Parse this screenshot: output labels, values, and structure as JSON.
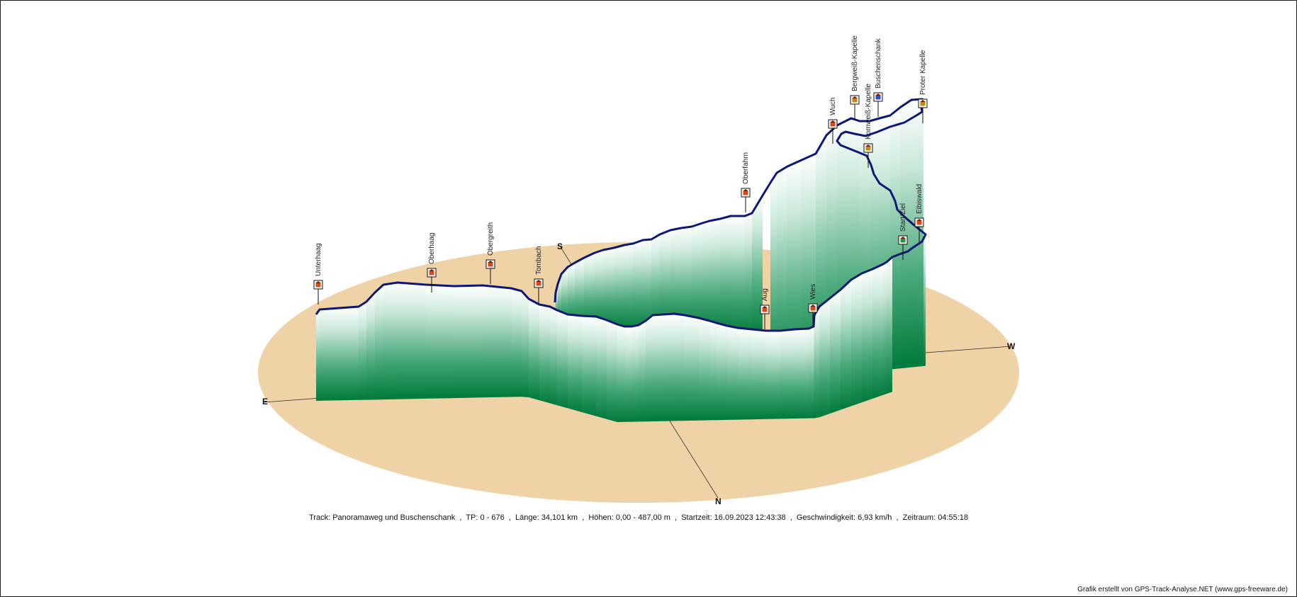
{
  "compass": {
    "north": "N",
    "south": "S",
    "east": "E",
    "west": "W"
  },
  "waypoints": [
    {
      "name": "Unterhaag",
      "icon": "house-icon",
      "alt": 10
    },
    {
      "name": "Oberhaag",
      "icon": "house-icon",
      "alt": 30
    },
    {
      "name": "Obergreith",
      "icon": "house-icon",
      "alt": 60
    },
    {
      "name": "Tombach",
      "icon": "house-icon",
      "alt": 20
    },
    {
      "name": "Oberfahrn",
      "icon": "house-icon",
      "alt": 150
    },
    {
      "name": "Aug",
      "icon": "house-icon",
      "alt": 10
    },
    {
      "name": "Wies",
      "icon": "house-icon",
      "alt": 10
    },
    {
      "name": "Wuch",
      "icon": "house-icon",
      "alt": 230
    },
    {
      "name": "Bergweiß-Kapelle",
      "icon": "chapel-icon",
      "alt": 350
    },
    {
      "name": "Kornweiß-Kapelle",
      "icon": "chapel-icon",
      "alt": 300
    },
    {
      "name": "Buschenschank",
      "icon": "restaurant-icon",
      "alt": 360
    },
    {
      "name": "Proter Kapelle",
      "icon": "chapel-icon",
      "alt": 440
    },
    {
      "name": "Eibiswald",
      "icon": "house-icon",
      "alt": 10
    },
    {
      "name": "Start/Ziel",
      "icon": "flag-icon",
      "alt": 0
    }
  ],
  "track": {
    "label": "Track",
    "name": "Panoramaweg und Buschenschank",
    "tp": "0 - 676",
    "length": "34,101 km",
    "elevation": "0,00 - 487,00 m",
    "start": "16.09.2023 12:43:38",
    "speed": "6,93 km/h",
    "duration": "04:55:18"
  },
  "info_text": "Track: Panoramaweg und Buschenschank  ,  TP: 0 - 676  ,  Länge: 34,101 km  ,  Höhen: 0,00 - 487,00 m  ,  Startzeit: 16.09.2023 12:43:38  ,  Geschwindigkeit: 6,93 km/h  ,  Zeitraum: 04:55:18",
  "credit": "Grafik erstellt von GPS-Track-Analyse.NET (www.gps-freeware.de)",
  "colors": {
    "ground": "#efd2a6",
    "curtain_base": "#007a3d",
    "curtain_top": "#ffffff",
    "track": "#0d1775",
    "house_icon": "#d84818",
    "chapel_icon": "#c58a0a",
    "restaurant_icon": "#2c4cc8",
    "flag_icon": "#1e9a3a"
  }
}
